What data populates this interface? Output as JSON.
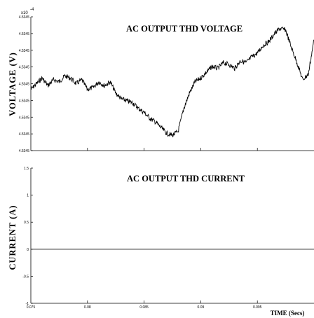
{
  "chart_data": [
    {
      "type": "line",
      "title": "AC OUTPUT THD VOLTAGE",
      "ylabel": "VOLTAGE (V)",
      "xlabel": "",
      "xlim": [
        0.075,
        0.1
      ],
      "ylim": [
        4.5345,
        4.53458
      ],
      "yscale_note": "x10^-4",
      "xticks": [
        0.075,
        0.08,
        0.085,
        0.09,
        0.095,
        0.1
      ],
      "yticks": [
        "4.5345",
        "4.5345",
        "4.5345",
        "4.5345",
        "4.5345",
        "4.5345",
        "4.5345",
        "4.5345",
        "4.5345"
      ],
      "series": [
        {
          "x": [
            0.075,
            0.0755,
            0.076,
            0.0765,
            0.077,
            0.0775,
            0.078,
            0.0785,
            0.079,
            0.0795,
            0.08,
            0.0805,
            0.081,
            0.0815,
            0.082,
            0.0825,
            0.083,
            0.0835,
            0.084,
            0.0845,
            0.085,
            0.0855,
            0.086,
            0.0865,
            0.087,
            0.0875,
            0.088,
            0.0885,
            0.089,
            0.0895,
            0.09,
            0.0905,
            0.091,
            0.0915,
            0.092,
            0.0925,
            0.093,
            0.0935,
            0.094,
            0.0945,
            0.095,
            0.0955,
            0.096,
            0.0965,
            0.097,
            0.0975,
            0.098,
            0.0985,
            0.099,
            0.0995,
            0.1
          ],
          "values": [
            4.534542,
            4.534545,
            4.534548,
            4.534544,
            4.534547,
            4.534546,
            4.534549,
            4.534548,
            4.534545,
            4.534547,
            4.534542,
            4.534543,
            4.534546,
            4.534544,
            4.534546,
            4.53454,
            4.534537,
            4.534536,
            4.534535,
            4.534532,
            4.53453,
            4.534527,
            4.534525,
            4.534522,
            4.534519,
            4.534518,
            4.53452,
            4.534532,
            4.53454,
            4.534546,
            4.534548,
            4.534551,
            4.534554,
            4.534553,
            4.534556,
            4.534555,
            4.534553,
            4.534557,
            4.534556,
            4.534559,
            4.534561,
            4.534565,
            4.534567,
            4.534571,
            4.534574,
            4.534573,
            4.534564,
            4.534556,
            4.534547,
            4.53455,
            4.534568
          ]
        }
      ]
    },
    {
      "type": "line",
      "title": "AC OUTPUT THD CURRENT",
      "ylabel": "CURRENT (A)",
      "xlabel": "TIME (Secs)",
      "xlim": [
        0.075,
        0.1
      ],
      "ylim": [
        -1,
        1.5
      ],
      "xticks": [
        0.075,
        0.08,
        0.085,
        0.09,
        0.095,
        0.1
      ],
      "yticks": [
        -1,
        -0.5,
        0,
        0.5,
        1,
        1.5
      ],
      "series": [
        {
          "x": [
            0.075,
            0.1
          ],
          "values": [
            0,
            0
          ]
        }
      ]
    }
  ],
  "xtick_labels": [
    "0.075",
    "0.08",
    "0.085",
    "0.09",
    "0.095"
  ],
  "ytick_labels_top": [
    "4.5345",
    "4.5345",
    "4.5345",
    "4.5345",
    "4.5345",
    "4.5345",
    "4.5345",
    "4.5345",
    "4.5345"
  ],
  "ytick_labels_bottom": [
    "1.5",
    "1",
    "0.5",
    "0",
    "-0.5",
    "-1"
  ],
  "exponent_label": "x10",
  "exponent_power": "-4"
}
